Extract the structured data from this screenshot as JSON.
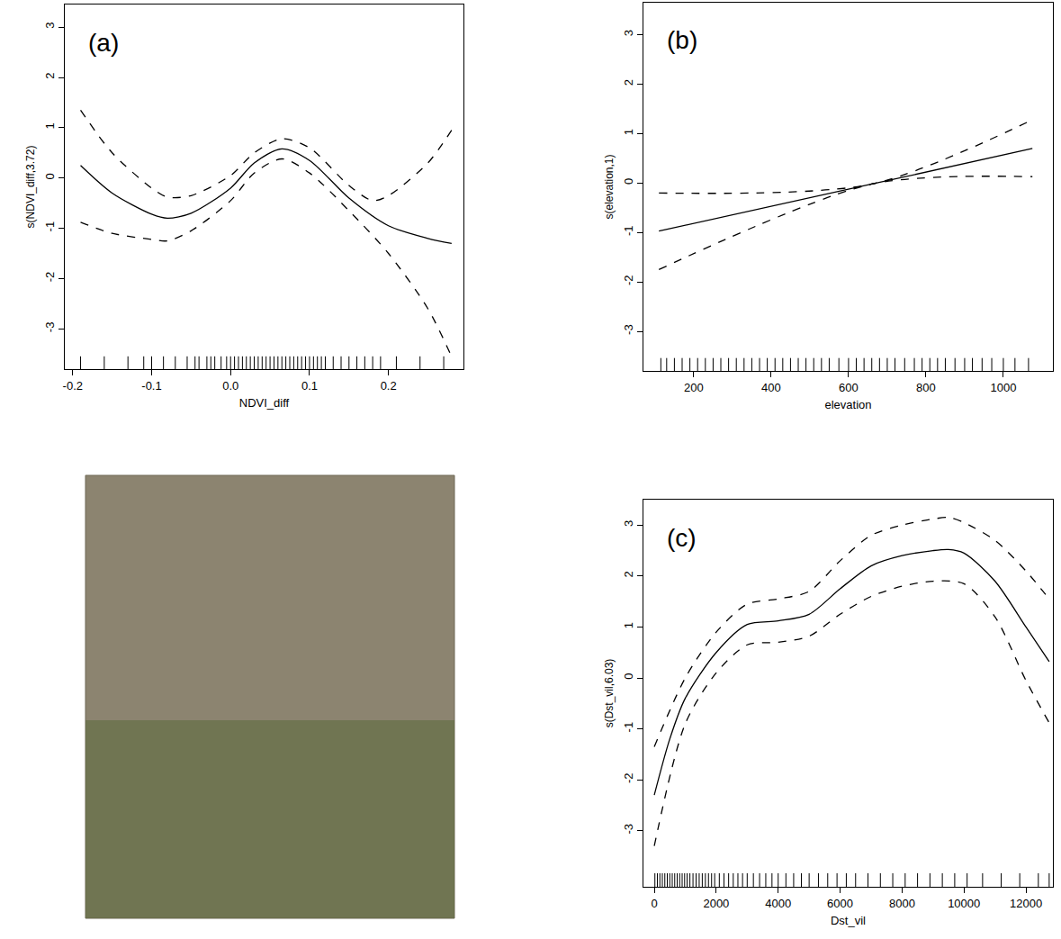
{
  "chart_data": [
    {
      "type": "line",
      "panel": "(a)",
      "x_label": "NDVI_diff",
      "y_label": "s(NDVI_diff,3.72)",
      "xlim": [
        -0.21,
        0.295
      ],
      "ylim": [
        -3.8,
        3.45
      ],
      "xticks": [
        -0.2,
        -0.1,
        {
          "value": 0,
          "label": "0.0"
        },
        0.1,
        0.2
      ],
      "yticks": [
        -3,
        -2,
        -1,
        0,
        1,
        2,
        3
      ],
      "series": [
        {
          "line_style": "solid",
          "color": "#000000",
          "x": [
            -0.19,
            -0.15,
            -0.1,
            -0.08,
            -0.05,
            0,
            0.03,
            0.065,
            0.1,
            0.15,
            0.2,
            0.25,
            0.28
          ],
          "values": [
            0.25,
            -0.3,
            -0.72,
            -0.8,
            -0.7,
            -0.2,
            0.3,
            0.58,
            0.35,
            -0.4,
            -0.95,
            -1.2,
            -1.3
          ]
        },
        {
          "line_style": "dash",
          "color": "#000000",
          "x": [
            -0.19,
            -0.15,
            -0.1,
            -0.08,
            -0.05,
            0,
            0.03,
            0.065,
            0.1,
            0.15,
            0.18,
            0.2,
            0.25,
            0.28
          ],
          "values": [
            1.35,
            0.5,
            -0.2,
            -0.38,
            -0.35,
            0.05,
            0.5,
            0.78,
            0.6,
            -0.15,
            -0.45,
            -0.35,
            0.3,
            0.95
          ]
        },
        {
          "line_style": "dash",
          "color": "#000000",
          "x": [
            -0.19,
            -0.15,
            -0.1,
            -0.08,
            -0.05,
            0,
            0.03,
            0.065,
            0.1,
            0.15,
            0.2,
            0.25,
            0.28
          ],
          "values": [
            -0.88,
            -1.1,
            -1.22,
            -1.25,
            -1.05,
            -0.45,
            0.1,
            0.38,
            0.1,
            -0.65,
            -1.5,
            -2.6,
            -3.55
          ]
        }
      ],
      "rug": [
        -0.19,
        -0.16,
        -0.13,
        -0.11,
        -0.1,
        -0.085,
        -0.07,
        -0.055,
        -0.045,
        -0.04,
        -0.03,
        -0.025,
        -0.02,
        -0.012,
        -0.005,
        0.0,
        0.005,
        0.01,
        0.015,
        0.02,
        0.025,
        0.03,
        0.035,
        0.04,
        0.045,
        0.05,
        0.055,
        0.06,
        0.065,
        0.07,
        0.075,
        0.08,
        0.085,
        0.09,
        0.095,
        0.1,
        0.105,
        0.11,
        0.115,
        0.12,
        0.13,
        0.14,
        0.15,
        0.16,
        0.17,
        0.18,
        0.19,
        0.21,
        0.24,
        0.27
      ]
    },
    {
      "type": "line",
      "panel": "(b)",
      "x_label": "elevation",
      "y_label": "s(elevation,1)",
      "xlim": [
        70,
        1128
      ],
      "ylim": [
        -3.8,
        3.65
      ],
      "xticks": [
        200,
        400,
        600,
        800,
        1000
      ],
      "yticks": [
        -3,
        -2,
        -1,
        0,
        1,
        2,
        3
      ],
      "series": [
        {
          "line_style": "solid",
          "color": "#000000",
          "x": [
            110,
            660,
            1075
          ],
          "values": [
            -0.97,
            -0.02,
            0.7
          ]
        },
        {
          "line_style": "dash",
          "color": "#000000",
          "x": [
            110,
            660,
            1075
          ],
          "values": [
            -0.2,
            -0.02,
            1.28
          ]
        },
        {
          "line_style": "dash",
          "color": "#000000",
          "x": [
            110,
            660,
            1075
          ],
          "values": [
            -1.75,
            -0.02,
            0.13
          ]
        }
      ],
      "rug": [
        115,
        130,
        150,
        170,
        190,
        210,
        230,
        250,
        270,
        290,
        310,
        330,
        350,
        370,
        390,
        410,
        430,
        450,
        470,
        490,
        510,
        530,
        550,
        575,
        600,
        620,
        640,
        660,
        680,
        700,
        720,
        745,
        770,
        790,
        810,
        830,
        850,
        875,
        900,
        920,
        945,
        970,
        1000,
        1030,
        1065
      ]
    },
    {
      "type": "line",
      "panel": "(c)",
      "x_label": "Dst_vil",
      "y_label": "s(Dst_vil,6.03)",
      "xlim": [
        -350,
        12870
      ],
      "ylim": [
        -4.1,
        3.5
      ],
      "xticks": [
        0,
        2000,
        4000,
        6000,
        8000,
        10000,
        12000
      ],
      "yticks": [
        -3,
        -2,
        -1,
        0,
        1,
        2,
        3
      ],
      "series": [
        {
          "line_style": "solid",
          "color": "#000000",
          "x": [
            0,
            500,
            1000,
            2000,
            3000,
            4000,
            5000,
            6000,
            7000,
            8000,
            9000,
            9500,
            10000,
            11000,
            12000,
            12750
          ],
          "values": [
            -2.3,
            -1.2,
            -0.4,
            0.5,
            1.05,
            1.12,
            1.25,
            1.75,
            2.2,
            2.4,
            2.5,
            2.52,
            2.45,
            1.9,
            1.0,
            0.32
          ]
        },
        {
          "line_style": "dash",
          "color": "#000000",
          "x": [
            0,
            1000,
            2000,
            3000,
            4000,
            5000,
            6000,
            7000,
            8000,
            9000,
            9500,
            10000,
            11000,
            12000,
            12750
          ],
          "values": [
            -1.35,
            0.0,
            0.9,
            1.45,
            1.55,
            1.7,
            2.3,
            2.8,
            3.0,
            3.12,
            3.15,
            3.05,
            2.7,
            2.1,
            1.55
          ]
        },
        {
          "line_style": "dash",
          "color": "#000000",
          "x": [
            0,
            1000,
            2000,
            3000,
            4000,
            5000,
            6000,
            7000,
            8000,
            9000,
            10000,
            11000,
            12000,
            12750
          ],
          "values": [
            -3.3,
            -0.9,
            0.1,
            0.65,
            0.7,
            0.82,
            1.25,
            1.6,
            1.8,
            1.9,
            1.85,
            1.2,
            -0.05,
            -0.88
          ]
        }
      ],
      "rug": [
        20,
        100,
        180,
        260,
        340,
        420,
        500,
        580,
        660,
        740,
        820,
        900,
        980,
        1060,
        1150,
        1250,
        1350,
        1450,
        1550,
        1650,
        1750,
        1850,
        1950,
        2100,
        2250,
        2400,
        2550,
        2700,
        2850,
        3000,
        3200,
        3400,
        3600,
        3800,
        4000,
        4250,
        4500,
        4750,
        5000,
        5300,
        5600,
        5900,
        6200,
        6500,
        6900,
        7300,
        7700,
        8100,
        8500,
        8900,
        9300,
        9700,
        10100,
        10600,
        11200,
        11800,
        12400,
        12750
      ]
    }
  ]
}
